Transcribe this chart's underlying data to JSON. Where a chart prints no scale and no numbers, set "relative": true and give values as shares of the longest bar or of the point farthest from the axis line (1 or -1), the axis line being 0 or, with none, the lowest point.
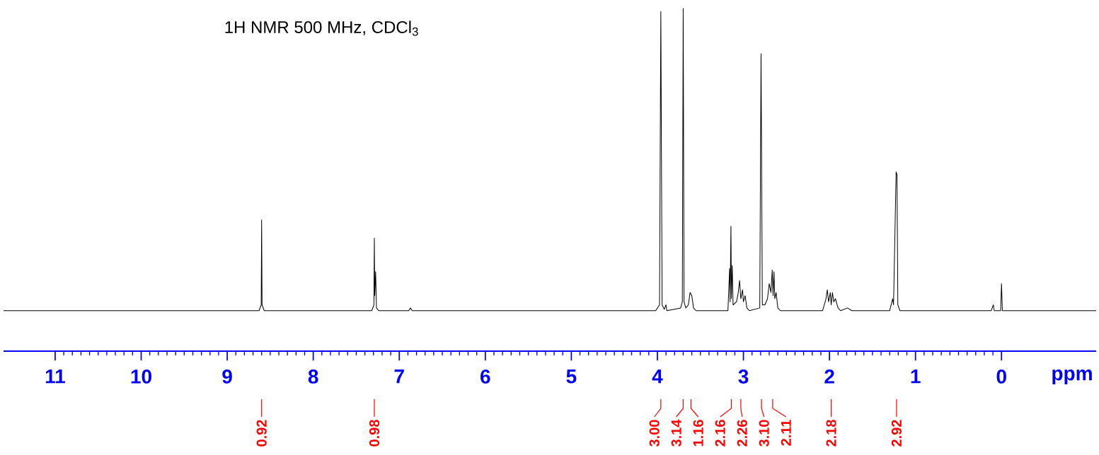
{
  "chart_data": {
    "type": "line",
    "title": "1H NMR 500 MHz, CDCl$_{3}$",
    "xlabel": "ppm",
    "relative": true,
    "marker": "none",
    "xlim": [
      11.6,
      -1.1
    ],
    "xticks": [
      11,
      10,
      9,
      8,
      7,
      6,
      5,
      4,
      3,
      2,
      1,
      0
    ],
    "series": [
      {
        "color": "#000000",
        "x": [
          11.6,
          8.63,
          8.605,
          8.6,
          8.595,
          8.57,
          7.32,
          7.295,
          7.29,
          7.285,
          7.275,
          7.265,
          7.24,
          6.89,
          6.87,
          6.85,
          4.02,
          3.975,
          3.96,
          3.945,
          3.92,
          3.9,
          3.89,
          3.73,
          3.71,
          3.7,
          3.69,
          3.67,
          3.64,
          3.62,
          3.6,
          3.58,
          3.55,
          3.18,
          3.16,
          3.155,
          3.145,
          3.14,
          3.13,
          3.12,
          3.08,
          3.06,
          3.045,
          3.03,
          3.01,
          3.0,
          2.98,
          2.96,
          2.93,
          2.81,
          2.795,
          2.78,
          2.75,
          2.72,
          2.7,
          2.68,
          2.665,
          2.655,
          2.645,
          2.635,
          2.62,
          2.6,
          2.57,
          2.08,
          2.04,
          2.025,
          2.01,
          1.99,
          1.98,
          1.965,
          1.95,
          1.93,
          1.9,
          1.87,
          1.79,
          1.74,
          1.3,
          1.265,
          1.255,
          1.225,
          1.215,
          1.205,
          1.18,
          1.14,
          0.12,
          0.095,
          0.085,
          0.01,
          0.0,
          -0.01,
          -1.1
        ],
        "values": [
          0.118,
          0.118,
          0.135,
          0.383,
          0.135,
          0.118,
          0.118,
          0.135,
          0.33,
          0.162,
          0.232,
          0.126,
          0.118,
          0.118,
          0.126,
          0.118,
          0.118,
          0.135,
          0.991,
          0.135,
          0.122,
          0.135,
          0.118,
          0.126,
          0.144,
          1.0,
          0.144,
          0.126,
          0.135,
          0.171,
          0.162,
          0.126,
          0.118,
          0.118,
          0.241,
          0.144,
          0.365,
          0.153,
          0.25,
          0.135,
          0.144,
          0.171,
          0.206,
          0.153,
          0.179,
          0.144,
          0.162,
          0.126,
          0.118,
          0.126,
          0.868,
          0.135,
          0.135,
          0.153,
          0.197,
          0.171,
          0.237,
          0.162,
          0.232,
          0.153,
          0.171,
          0.126,
          0.118,
          0.118,
          0.153,
          0.179,
          0.144,
          0.171,
          0.135,
          0.171,
          0.144,
          0.153,
          0.126,
          0.118,
          0.126,
          0.118,
          0.118,
          0.153,
          0.135,
          0.523,
          0.515,
          0.135,
          0.118,
          0.118,
          0.118,
          0.135,
          0.118,
          0.118,
          0.197,
          0.118,
          0.118
        ]
      }
    ],
    "annotations": [
      {
        "text": "0.92",
        "x": 8.6
      },
      {
        "text": "0.98",
        "x": 7.29
      },
      {
        "text": "3.00",
        "x": 3.96
      },
      {
        "text": "3.14",
        "x": 3.7
      },
      {
        "text": "1.16",
        "x": 3.61
      },
      {
        "text": "2.16",
        "x": 3.14
      },
      {
        "text": "2.26",
        "x": 3.03
      },
      {
        "text": "3.10",
        "x": 2.79
      },
      {
        "text": "2.11",
        "x": 2.66
      },
      {
        "text": "2.18",
        "x": 1.98
      },
      {
        "text": "2.92",
        "x": 1.22
      }
    ]
  }
}
